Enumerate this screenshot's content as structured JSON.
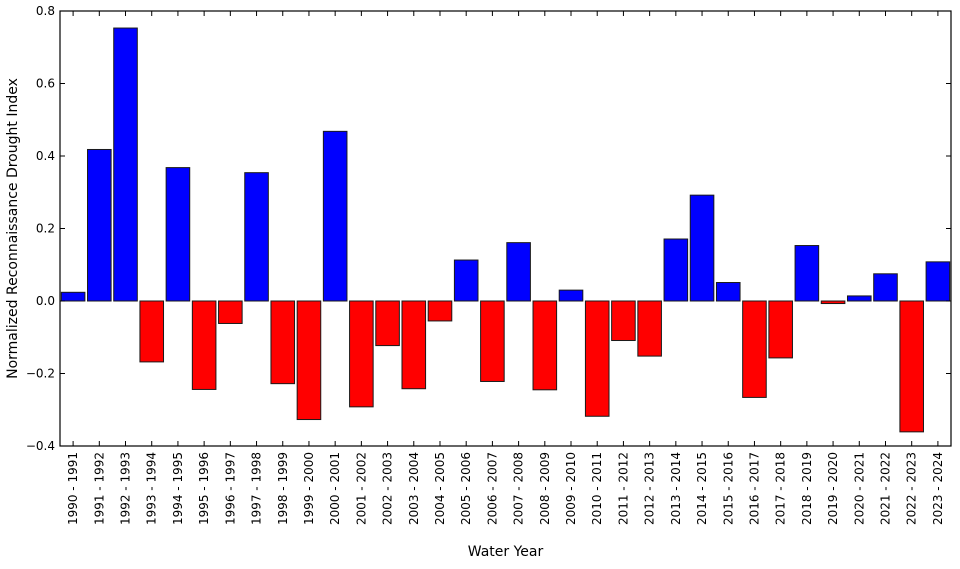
{
  "chart_data": {
    "type": "bar",
    "title": "",
    "xlabel": "Water Year",
    "ylabel": "Normalized Reconnaissance Drought Index",
    "ylim": [
      -0.4,
      0.8
    ],
    "yticks": [
      -0.4,
      -0.2,
      0.0,
      0.2,
      0.4,
      0.6,
      0.8
    ],
    "ytick_labels": [
      "−0.4",
      "−0.2",
      "0.0",
      "0.2",
      "0.4",
      "0.6",
      "0.8"
    ],
    "grid": false,
    "legend": null,
    "colors": {
      "positive": "#0000ff",
      "negative": "#ff0000",
      "edge": "#1a1a1a"
    },
    "categories": [
      "1990 - 1991",
      "1991 - 1992",
      "1992 - 1993",
      "1993 - 1994",
      "1994 - 1995",
      "1995 - 1996",
      "1996 - 1997",
      "1997 - 1998",
      "1998 - 1999",
      "1999 - 2000",
      "2000 - 2001",
      "2001 - 2002",
      "2002 - 2003",
      "2003 - 2004",
      "2004 - 2005",
      "2005 - 2006",
      "2006 - 2007",
      "2007 - 2008",
      "2008 - 2009",
      "2009 - 2010",
      "2010 - 2011",
      "2011 - 2012",
      "2012 - 2013",
      "2013 - 2014",
      "2014 - 2015",
      "2015 - 2016",
      "2016 - 2017",
      "2017 - 2018",
      "2018 - 2019",
      "2019 - 2020",
      "2020 - 2021",
      "2021 - 2022",
      "2022 - 2023",
      "2023 - 2024"
    ],
    "values": [
      0.024,
      0.418,
      0.753,
      -0.168,
      0.368,
      -0.244,
      -0.062,
      0.354,
      -0.228,
      -0.327,
      0.468,
      -0.292,
      -0.123,
      -0.242,
      -0.055,
      0.113,
      -0.222,
      0.161,
      -0.245,
      0.03,
      -0.318,
      -0.109,
      -0.152,
      0.171,
      0.292,
      0.051,
      -0.266,
      -0.157,
      0.153,
      -0.007,
      0.014,
      0.075,
      -0.361,
      0.108
    ]
  }
}
